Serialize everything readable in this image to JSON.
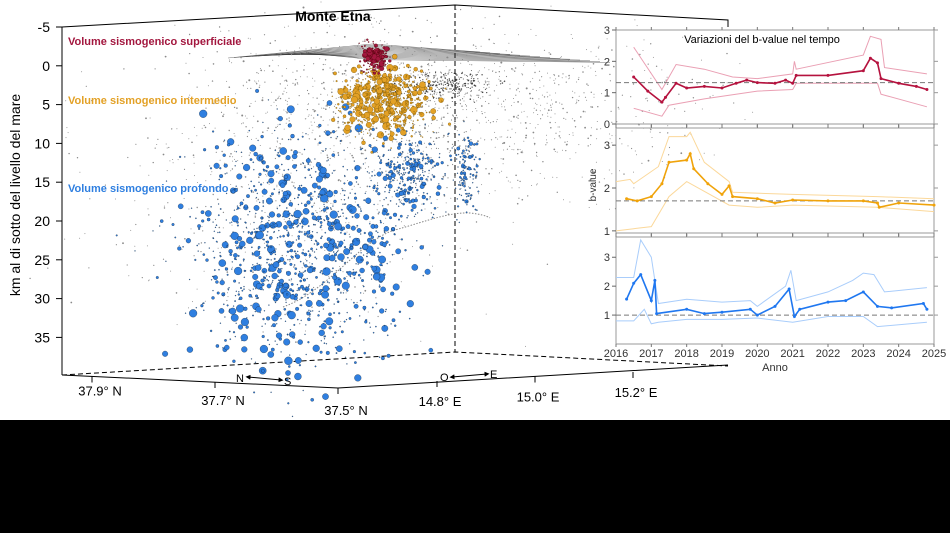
{
  "chart_data": [
    {
      "type": "scatter",
      "title": "Monte Etna",
      "ylabel": "km al di sotto del livello del mare",
      "ylim": [
        -5,
        35
      ],
      "y_ticks": [
        "-5",
        "0",
        "5",
        "10",
        "15",
        "20",
        "25",
        "30",
        "35"
      ],
      "lat_ticks": [
        "37.9° N",
        "37.7° N",
        "37.5° N"
      ],
      "lon_ticks": [
        "14.8° E",
        "15.0° E",
        "15.2° E"
      ],
      "ns_label": {
        "n": "N",
        "s": "S"
      },
      "oe_label": {
        "o": "O",
        "e": "E"
      },
      "volumes": [
        {
          "name": "Volume sismogenico superficiale",
          "color": "#a3173f"
        },
        {
          "name": "Volume sismogenico intermedio",
          "color": "#e3a126"
        },
        {
          "name": "Volume sismogenico profondo",
          "color": "#2f7fe0"
        }
      ],
      "background_events_color": "#8a8a8a"
    },
    {
      "type": "line",
      "title": "Variazioni del b-value nel tempo",
      "xlabel": "Anno",
      "ylabel": "b-value",
      "xlim": [
        2016,
        2025
      ],
      "x_ticks": [
        "2016",
        "2017",
        "2018",
        "2019",
        "2020",
        "2021",
        "2022",
        "2023",
        "2024",
        "2025"
      ],
      "panels": [
        {
          "color": "#b5123e",
          "band_color": "#eaa0b4",
          "ylim": [
            0,
            3
          ],
          "y_ticks": [
            "0",
            "1",
            "2",
            "3"
          ],
          "reference": 1.32,
          "mean": [
            [
              2016.5,
              1.5
            ],
            [
              2016.9,
              1.05
            ],
            [
              2017.3,
              0.7
            ],
            [
              2017.4,
              0.85
            ],
            [
              2017.7,
              1.3
            ],
            [
              2018.0,
              1.15
            ],
            [
              2018.5,
              1.2
            ],
            [
              2019.0,
              1.15
            ],
            [
              2019.4,
              1.3
            ],
            [
              2019.7,
              1.4
            ],
            [
              2020.0,
              1.32
            ],
            [
              2020.5,
              1.3
            ],
            [
              2020.8,
              1.4
            ],
            [
              2021.0,
              1.3
            ],
            [
              2021.1,
              1.55
            ],
            [
              2022.0,
              1.55
            ],
            [
              2023.0,
              1.7
            ],
            [
              2023.2,
              2.1
            ],
            [
              2023.4,
              1.95
            ],
            [
              2023.5,
              1.45
            ],
            [
              2024.0,
              1.3
            ],
            [
              2024.5,
              1.2
            ],
            [
              2024.8,
              1.1
            ]
          ],
          "upper": [
            [
              2016.5,
              2.45
            ],
            [
              2017.3,
              1.1
            ],
            [
              2017.7,
              1.9
            ],
            [
              2018.5,
              1.75
            ],
            [
              2019.3,
              1.5
            ],
            [
              2020.0,
              1.45
            ],
            [
              2021.0,
              1.6
            ],
            [
              2021.05,
              2.0
            ],
            [
              2021.1,
              1.75
            ],
            [
              2023.0,
              2.2
            ],
            [
              2023.2,
              2.8
            ],
            [
              2023.5,
              2.7
            ],
            [
              2023.6,
              1.8
            ],
            [
              2024.8,
              1.6
            ]
          ],
          "lower": [
            [
              2016.5,
              0.5
            ],
            [
              2017.3,
              0.25
            ],
            [
              2017.5,
              0.6
            ],
            [
              2018.5,
              0.8
            ],
            [
              2020.0,
              1.05
            ],
            [
              2021.0,
              1.1
            ],
            [
              2021.1,
              1.3
            ],
            [
              2023.4,
              1.3
            ],
            [
              2023.5,
              0.95
            ],
            [
              2024.8,
              0.55
            ]
          ]
        },
        {
          "color": "#f0a30a",
          "band_color": "#fbd89a",
          "ylim": [
            0.95,
            3.4
          ],
          "y_ticks": [
            "1",
            "2",
            "3"
          ],
          "reference": 1.7,
          "mean": [
            [
              2016.3,
              1.75
            ],
            [
              2016.6,
              1.7
            ],
            [
              2017.0,
              1.8
            ],
            [
              2017.3,
              2.1
            ],
            [
              2017.5,
              2.6
            ],
            [
              2018.0,
              2.65
            ],
            [
              2018.1,
              2.8
            ],
            [
              2018.2,
              2.45
            ],
            [
              2018.6,
              2.1
            ],
            [
              2019.0,
              1.85
            ],
            [
              2019.2,
              2.05
            ],
            [
              2019.3,
              1.8
            ],
            [
              2020.0,
              1.75
            ],
            [
              2020.5,
              1.65
            ],
            [
              2021.0,
              1.72
            ],
            [
              2022.0,
              1.7
            ],
            [
              2023.0,
              1.7
            ],
            [
              2023.4,
              1.65
            ],
            [
              2023.45,
              1.55
            ],
            [
              2024.0,
              1.65
            ],
            [
              2025.0,
              1.6
            ]
          ],
          "upper": [
            [
              2016.0,
              2.15
            ],
            [
              2016.4,
              2.2
            ],
            [
              2016.5,
              2.1
            ],
            [
              2017.2,
              2.5
            ],
            [
              2017.5,
              3.2
            ],
            [
              2018.0,
              3.2
            ],
            [
              2018.1,
              3.3
            ],
            [
              2018.5,
              2.6
            ],
            [
              2019.2,
              2.15
            ],
            [
              2019.3,
              1.9
            ],
            [
              2021.0,
              1.85
            ],
            [
              2023.4,
              1.8
            ],
            [
              2025.0,
              1.75
            ]
          ],
          "lower": [
            [
              2016.0,
              1.0
            ],
            [
              2016.5,
              1.05
            ],
            [
              2017.0,
              1.1
            ],
            [
              2017.5,
              1.8
            ],
            [
              2018.0,
              2.15
            ],
            [
              2019.2,
              1.6
            ],
            [
              2020.0,
              1.55
            ],
            [
              2021.0,
              1.6
            ],
            [
              2023.4,
              1.55
            ],
            [
              2025.0,
              1.45
            ]
          ]
        },
        {
          "color": "#1f77f0",
          "band_color": "#a9cdfb",
          "ylim": [
            0,
            3.7
          ],
          "y_ticks": [
            "1",
            "2",
            "3"
          ],
          "reference": 1.0,
          "mean": [
            [
              2016.3,
              1.55
            ],
            [
              2016.5,
              2.1
            ],
            [
              2016.7,
              2.4
            ],
            [
              2017.0,
              1.5
            ],
            [
              2017.1,
              2.2
            ],
            [
              2017.15,
              1.05
            ],
            [
              2018.0,
              1.2
            ],
            [
              2018.5,
              1.05
            ],
            [
              2019.0,
              1.1
            ],
            [
              2019.8,
              1.2
            ],
            [
              2020.0,
              1.0
            ],
            [
              2020.5,
              1.3
            ],
            [
              2020.9,
              1.9
            ],
            [
              2021.05,
              0.95
            ],
            [
              2021.2,
              1.2
            ],
            [
              2022.0,
              1.45
            ],
            [
              2022.5,
              1.5
            ],
            [
              2023.0,
              1.8
            ],
            [
              2023.4,
              1.3
            ],
            [
              2023.8,
              1.25
            ],
            [
              2024.7,
              1.4
            ],
            [
              2024.8,
              1.2
            ]
          ],
          "upper": [
            [
              2016.0,
              2.3
            ],
            [
              2016.5,
              2.3
            ],
            [
              2016.7,
              3.6
            ],
            [
              2017.0,
              3.0
            ],
            [
              2017.2,
              1.4
            ],
            [
              2018.0,
              1.55
            ],
            [
              2019.0,
              1.45
            ],
            [
              2019.8,
              1.5
            ],
            [
              2020.0,
              1.3
            ],
            [
              2020.8,
              2.0
            ],
            [
              2020.95,
              2.55
            ],
            [
              2021.1,
              1.5
            ],
            [
              2022.0,
              1.8
            ],
            [
              2022.7,
              2.2
            ],
            [
              2023.0,
              2.45
            ],
            [
              2023.3,
              2.4
            ],
            [
              2023.6,
              1.8
            ],
            [
              2024.8,
              1.95
            ]
          ],
          "lower": [
            [
              2016.0,
              0.8
            ],
            [
              2016.5,
              0.8
            ],
            [
              2016.8,
              1.2
            ],
            [
              2017.0,
              0.7
            ],
            [
              2017.2,
              0.75
            ],
            [
              2018.0,
              0.85
            ],
            [
              2019.0,
              0.85
            ],
            [
              2020.0,
              0.9
            ],
            [
              2021.0,
              0.75
            ],
            [
              2022.0,
              0.95
            ],
            [
              2023.0,
              0.95
            ],
            [
              2023.4,
              0.6
            ],
            [
              2024.8,
              0.75
            ]
          ]
        }
      ]
    }
  ]
}
